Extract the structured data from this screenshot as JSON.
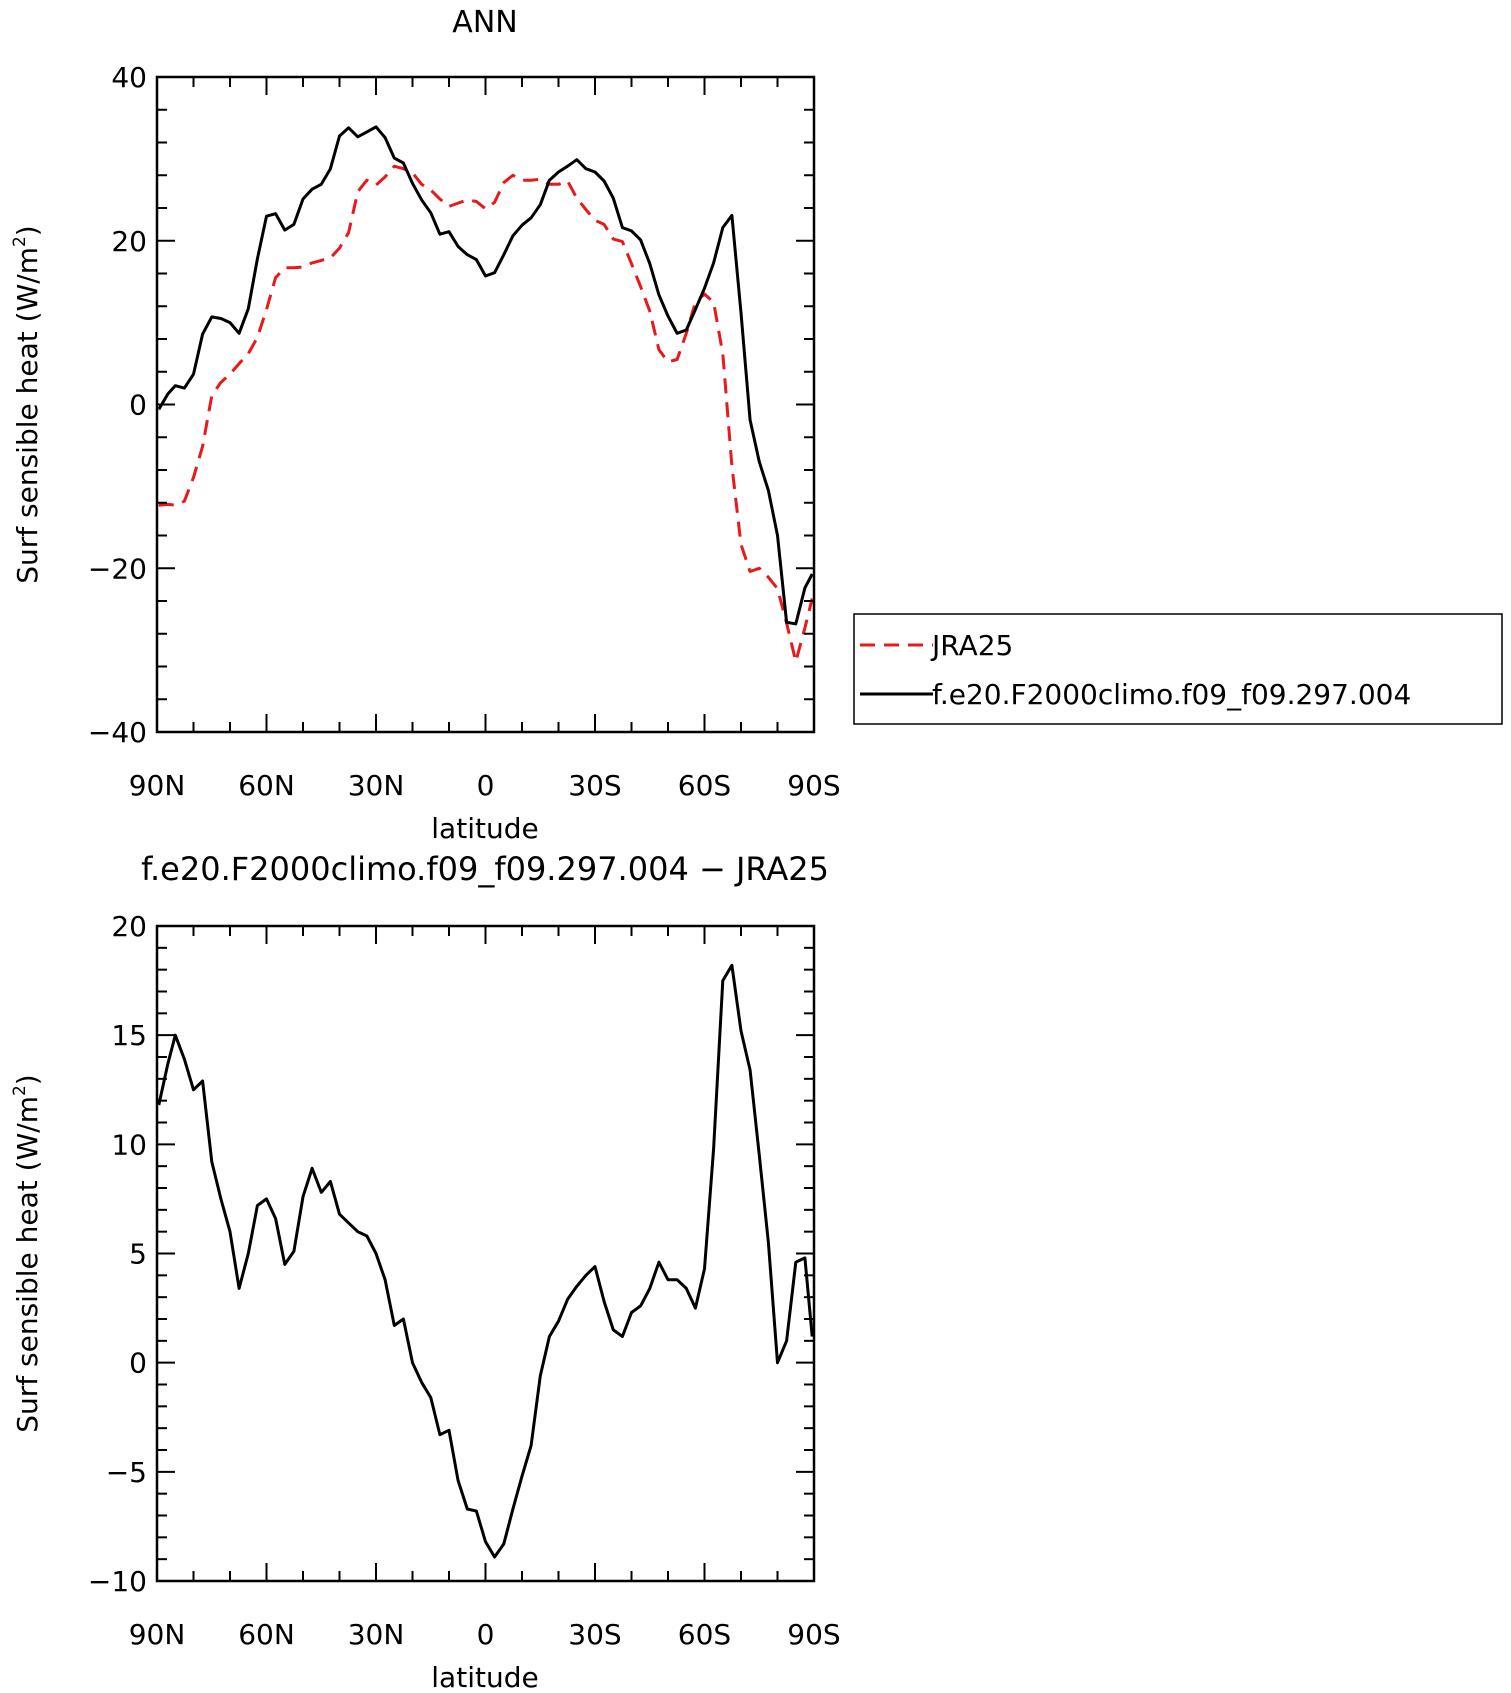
{
  "chart_data": [
    {
      "type": "line",
      "title": "ANN",
      "xlabel": "latitude",
      "ylabel_text": "Surf sensible heat (W/m",
      "ylabel_sup": "2",
      "ylabel_close": ")",
      "xlim": [
        90,
        -90
      ],
      "ylim": [
        -40,
        40
      ],
      "xticks": [
        90,
        60,
        30,
        0,
        -30,
        -60,
        -90
      ],
      "xtick_labels": [
        "90N",
        "60N",
        "30N",
        "0",
        "30S",
        "60S",
        "90S"
      ],
      "yticks": [
        -40,
        -20,
        0,
        20,
        40
      ],
      "ytick_labels": [
        "-40",
        "-20",
        "0",
        "20",
        "40"
      ],
      "grid": false,
      "legend": "right",
      "series": [
        {
          "name": "JRA25",
          "color": "#e8191b",
          "style": "dashed",
          "x": [
            89.5,
            87,
            85,
            82.5,
            80,
            77.5,
            75,
            72.5,
            70,
            67.5,
            65,
            62.5,
            60,
            57.5,
            55,
            52.5,
            50,
            47.5,
            45,
            42.5,
            40,
            37.5,
            35,
            32.5,
            30,
            27.5,
            25,
            22.5,
            20,
            17.5,
            15,
            12.5,
            10,
            7.5,
            5,
            2.5,
            0,
            -2.5,
            -5,
            -7.5,
            -10,
            -12.5,
            -15,
            -17.5,
            -20,
            -22.5,
            -25,
            -27.5,
            -30,
            -32.5,
            -35,
            -37.5,
            -40,
            -42.5,
            -45,
            -47.5,
            -50,
            -52.5,
            -55,
            -57.5,
            -60,
            -62.5,
            -65,
            -67.5,
            -70,
            -72.5,
            -75,
            -77.5,
            -80,
            -82.5,
            -85,
            -87.5,
            -89.5
          ],
          "values": [
            -12.3,
            -12.2,
            -12.3,
            -11.8,
            -8.9,
            -5.1,
            1.1,
            2.7,
            3.7,
            5,
            6.2,
            8.2,
            11.6,
            15.5,
            16.7,
            16.7,
            16.8,
            17.3,
            17.6,
            17.9,
            19.1,
            21,
            26,
            27.4,
            26.8,
            27.8,
            29.1,
            28.8,
            28.3,
            26.9,
            26.2,
            25.1,
            24.2,
            24.6,
            25,
            24.8,
            23.9,
            24.7,
            27.1,
            28,
            27.4,
            27.4,
            27.5,
            26.9,
            26.9,
            27.3,
            25.2,
            23.8,
            22.5,
            22,
            20.2,
            19.9,
            17.2,
            14.4,
            11.4,
            6.7,
            5.2,
            5.5,
            8.7,
            12.5,
            13.5,
            12.5,
            6.2,
            -7.5,
            -17.1,
            -20.4,
            -20,
            -21.1,
            -22.5,
            -26.7,
            -31.4,
            -27.3,
            -23.7
          ]
        },
        {
          "name": "f.e20.F2000climo.f09_f09.297.004",
          "color": "#000000",
          "style": "solid",
          "x": [
            89.5,
            87,
            85,
            82.5,
            80,
            77.5,
            75,
            72.5,
            70,
            67.5,
            65,
            62.5,
            60,
            57.5,
            55,
            52.5,
            50,
            47.5,
            45,
            42.5,
            40,
            37.5,
            35,
            32.5,
            30,
            27.5,
            25,
            22.5,
            20,
            17.5,
            15,
            12.5,
            10,
            7.5,
            5,
            2.5,
            0,
            -2.5,
            -5,
            -7.5,
            -10,
            -12.5,
            -15,
            -17.5,
            -20,
            -22.5,
            -25,
            -27.5,
            -30,
            -32.5,
            -35,
            -37.5,
            -40,
            -42.5,
            -45,
            -47.5,
            -50,
            -52.5,
            -55,
            -57.5,
            -60,
            -62.5,
            -65,
            -67.5,
            -70,
            -72.5,
            -75,
            -77.5,
            -80,
            -82.5,
            -85,
            -87.5,
            -89.5
          ],
          "values": [
            -0.6,
            1.3,
            2.3,
            2,
            3.7,
            8.6,
            10.7,
            10.5,
            10,
            8.7,
            11.7,
            17.8,
            23,
            23.3,
            21.3,
            22,
            25.1,
            26.3,
            26.9,
            28.8,
            32.8,
            33.8,
            32.7,
            33.3,
            33.9,
            32.6,
            30.1,
            29.5,
            27,
            25,
            23.4,
            20.8,
            21.1,
            19.3,
            18.3,
            17.7,
            15.7,
            16.1,
            18.3,
            20.6,
            21.9,
            22.8,
            24.4,
            27.4,
            28.4,
            29.1,
            29.9,
            28.8,
            28.4,
            27.3,
            25.2,
            21.6,
            21.2,
            20.1,
            17.2,
            13.4,
            10.8,
            8.7,
            9.1,
            11.6,
            14.2,
            17.3,
            21.6,
            23.1,
            11.2,
            -1.9,
            -7,
            -10.5,
            -16,
            -26.6,
            -26.8,
            -22.4,
            -20.7
          ]
        }
      ]
    },
    {
      "type": "line",
      "title": "f.e20.F2000climo.f09_f09.297.004 − JRA25",
      "xlabel": "latitude",
      "ylabel_text": "Surf sensible heat (W/m",
      "ylabel_sup": "2",
      "ylabel_close": ")",
      "xlim": [
        90,
        -90
      ],
      "ylim": [
        -10,
        20
      ],
      "xticks": [
        90,
        60,
        30,
        0,
        -30,
        -60,
        -90
      ],
      "xtick_labels": [
        "90N",
        "60N",
        "30N",
        "0",
        "30S",
        "60S",
        "90S"
      ],
      "yticks": [
        -10,
        -5,
        0,
        5,
        10,
        15,
        20
      ],
      "ytick_labels": [
        "−10",
        "−5",
        "0",
        "5",
        "10",
        "15",
        "20"
      ],
      "grid": false,
      "series": [
        {
          "color": "#000000",
          "style": "solid",
          "x": [
            89.5,
            87,
            85,
            82.5,
            80,
            77.5,
            75,
            72.5,
            70,
            67.5,
            65,
            62.5,
            60,
            57.5,
            55,
            52.5,
            50,
            47.5,
            45,
            42.5,
            40,
            37.5,
            35,
            32.5,
            30,
            27.5,
            25,
            22.5,
            20,
            17.5,
            15,
            12.5,
            10,
            7.5,
            5,
            2.5,
            0,
            -2.5,
            -5,
            -7.5,
            -10,
            -12.5,
            -15,
            -17.5,
            -20,
            -22.5,
            -25,
            -27.5,
            -30,
            -32.5,
            -35,
            -37.5,
            -40,
            -42.5,
            -45,
            -47.5,
            -50,
            -52.5,
            -55,
            -57.5,
            -60,
            -62.5,
            -65,
            -67.5,
            -70,
            -72.5,
            -75,
            -77.5,
            -80,
            -82.5,
            -85,
            -87.5,
            -89.5
          ],
          "values": [
            11.8,
            13.7,
            15,
            13.9,
            12.5,
            12.9,
            9.2,
            7.5,
            6,
            3.4,
            5,
            7.2,
            7.5,
            6.6,
            4.5,
            5.1,
            7.6,
            8.9,
            7.8,
            8.3,
            6.8,
            6.4,
            6,
            5.8,
            5,
            3.8,
            1.7,
            2,
            0,
            -0.9,
            -1.6,
            -3.3,
            -3.1,
            -5.4,
            -6.7,
            -6.8,
            -8.2,
            -8.9,
            -8.3,
            -6.7,
            -5.2,
            -3.8,
            -0.6,
            1.2,
            1.9,
            2.9,
            3.5,
            4,
            4.4,
            2.8,
            1.5,
            1.2,
            2.3,
            2.6,
            3.4,
            4.6,
            3.8,
            3.8,
            3.4,
            2.5,
            4.3,
            9.8,
            17.5,
            18.2,
            15.2,
            13.4,
            9.5,
            5.5,
            0,
            1,
            4.6,
            4.8,
            1.2
          ]
        }
      ]
    }
  ]
}
